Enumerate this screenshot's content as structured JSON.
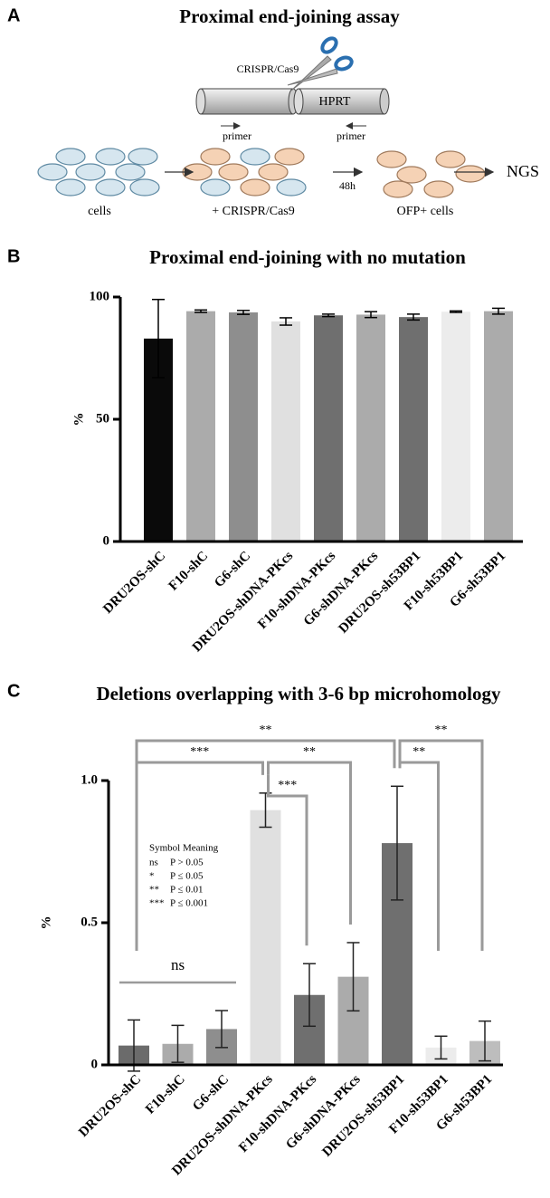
{
  "panel_a": {
    "label": "A",
    "title": "Proximal end-joining assay",
    "scissors_label": "CRISPR/Cas9",
    "gene": "HPRT",
    "primer_left": "primer",
    "primer_right": "primer",
    "steps": [
      "cells",
      "+ CRISPR/Cas9",
      "OFP+ cells"
    ],
    "time": "48h",
    "readout": "NGS"
  },
  "chart_data": [
    {
      "type": "bar",
      "panel_label": "B",
      "title": "Proximal end-joining with no mutation",
      "ylabel": "%",
      "categories": [
        "DRU2OS-shC",
        "F10-shC",
        "G6-shC",
        "DRU2OS-shDNA-PKcs",
        "F10-shDNA-PKcs",
        "G6-shDNA-PKcs",
        "DRU2OS-sh53BP1",
        "F10-sh53BP1",
        "G6-sh53BP1"
      ],
      "values": [
        83,
        94.2,
        93.7,
        90,
        92.5,
        92.8,
        91.8,
        94,
        94.2
      ],
      "errors": [
        16,
        0.5,
        0.8,
        1.5,
        0.5,
        1.2,
        1.2,
        0.3,
        1.2
      ],
      "colors": [
        "#0a0a0a",
        "#ababab",
        "#8e8e8e",
        "#e0e0e0",
        "#6f6f6f",
        "#ababab",
        "#6f6f6f",
        "#ececec",
        "#ababab"
      ],
      "error_color": "#000000",
      "ylim": [
        0,
        100
      ],
      "yticks": [
        0,
        50,
        100
      ]
    },
    {
      "type": "bar",
      "panel_label": "C",
      "title": "Deletions overlapping with 3-6 bp microhomology",
      "ylabel": "%",
      "categories": [
        "DRU2OS-shC",
        "F10-shC",
        "G6-shC",
        "DRU2OS-shDNA-PKcs",
        "F10-shDNA-PKcs",
        "G6-shDNA-PKcs",
        "DRU2OS-sh53BP1",
        "F10-sh53BP1",
        "G6-sh53BP1"
      ],
      "values": [
        0.068,
        0.074,
        0.126,
        0.896,
        0.246,
        0.31,
        0.78,
        0.061,
        0.084
      ],
      "errors": [
        0.09,
        0.065,
        0.065,
        0.06,
        0.11,
        0.12,
        0.2,
        0.04,
        0.07
      ],
      "colors": [
        "#6b6b6b",
        "#ababab",
        "#8e8e8e",
        "#e0e0e0",
        "#6f6f6f",
        "#ababab",
        "#6f6f6f",
        "#ececec",
        "#bdbdbd"
      ],
      "error_color": "#222222",
      "ylim": [
        0,
        1
      ],
      "yticks": [
        0,
        0.5,
        {
          "value": 1,
          "label": "1.0"
        }
      ],
      "comparisons": [
        {
          "from": 0,
          "to": 3,
          "label": "***"
        },
        {
          "from": 0,
          "to": 6,
          "label": "**"
        },
        {
          "from": 3,
          "to": 4,
          "label": "***"
        },
        {
          "from": 3,
          "to": 5,
          "label": "**"
        },
        {
          "from": 6,
          "to": 7,
          "label": "**"
        },
        {
          "from": 6,
          "to": 8,
          "label": "**"
        }
      ],
      "ns_group": {
        "from": 0,
        "to": 2,
        "label": "ns"
      },
      "legend": {
        "title": "Symbol Meaning",
        "rows": [
          [
            "ns",
            "P > 0.05"
          ],
          [
            "*",
            "P ≤ 0.05"
          ],
          [
            "**",
            "P ≤ 0.01"
          ],
          [
            "***",
            "P ≤ 0.001"
          ]
        ]
      }
    }
  ]
}
